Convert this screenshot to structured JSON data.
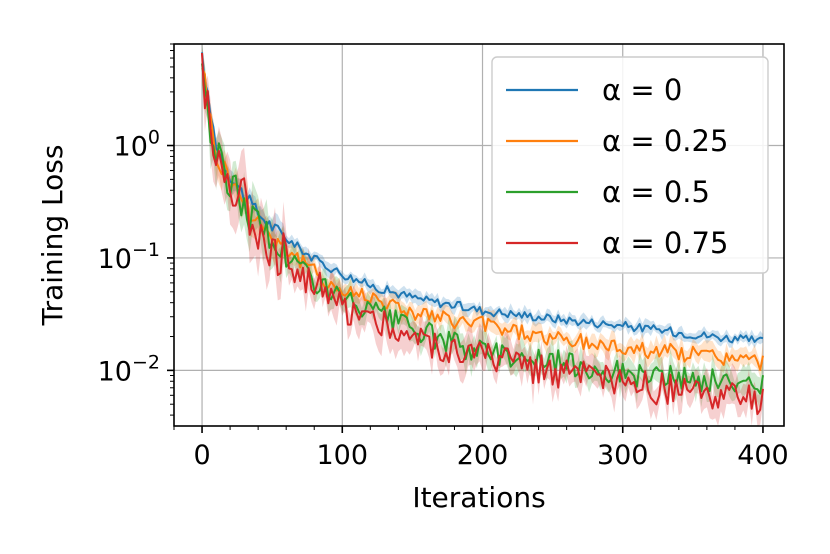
{
  "chart_data": {
    "type": "line",
    "title": "",
    "xlabel": "Iterations",
    "ylabel": "Training Loss",
    "xscale": "linear",
    "yscale": "log",
    "xlim": [
      -20,
      415
    ],
    "ylim": [
      0.0032,
      8.0
    ],
    "xticks": [
      0,
      100,
      200,
      300,
      400
    ],
    "yticks": [
      {
        "value": 1,
        "base": "10",
        "exp": "0"
      },
      {
        "value": 0.1,
        "base": "10",
        "exp": "−1"
      },
      {
        "value": 0.01,
        "base": "10",
        "exp": "−2"
      }
    ],
    "grid": true,
    "legend_position": "top-right",
    "x": [
      0,
      5,
      10,
      15,
      20,
      30,
      40,
      50,
      60,
      80,
      100,
      120,
      140,
      160,
      180,
      200,
      250,
      300,
      350,
      400
    ],
    "series": [
      {
        "name": "α = 0",
        "color": "#1f77b4",
        "values": [
          6.0,
          2.2,
          1.05,
          0.72,
          0.55,
          0.36,
          0.25,
          0.19,
          0.15,
          0.098,
          0.072,
          0.057,
          0.048,
          0.042,
          0.038,
          0.034,
          0.029,
          0.025,
          0.021,
          0.018
        ]
      },
      {
        "name": "α = 0.25",
        "color": "#ff7f0e",
        "values": [
          6.0,
          1.9,
          0.85,
          0.62,
          0.5,
          0.32,
          0.22,
          0.155,
          0.12,
          0.075,
          0.05,
          0.047,
          0.036,
          0.031,
          0.027,
          0.026,
          0.019,
          0.016,
          0.014,
          0.0118
        ]
      },
      {
        "name": "α = 0.5",
        "color": "#2ca02c",
        "values": [
          6.0,
          1.6,
          0.8,
          0.6,
          0.48,
          0.3,
          0.2,
          0.14,
          0.105,
          0.065,
          0.042,
          0.033,
          0.026,
          0.021,
          0.017,
          0.015,
          0.012,
          0.0095,
          0.0082,
          0.0074
        ]
      },
      {
        "name": "α = 0.75",
        "color": "#d62728",
        "values": [
          6.0,
          1.5,
          0.75,
          0.58,
          0.55,
          0.32,
          0.2,
          0.13,
          0.095,
          0.06,
          0.036,
          0.031,
          0.022,
          0.018,
          0.015,
          0.0135,
          0.0098,
          0.0075,
          0.0062,
          0.0052
        ]
      }
    ]
  }
}
